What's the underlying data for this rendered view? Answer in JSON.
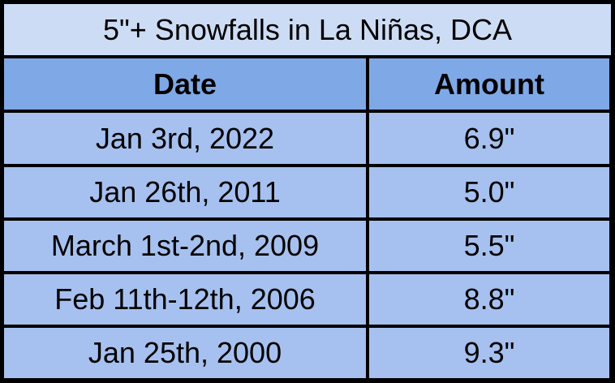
{
  "table": {
    "title": "5\"+ Snowfalls in La Niñas, DCA",
    "headers": {
      "date": "Date",
      "amount": "Amount"
    },
    "rows": [
      {
        "date": "Jan 3rd, 2022",
        "amount": "6.9\""
      },
      {
        "date": "Jan 26th, 2011",
        "amount": "5.0\""
      },
      {
        "date": "March 1st-2nd, 2009",
        "amount": "5.5\""
      },
      {
        "date": "Feb 11th-12th, 2006",
        "amount": "8.8\""
      },
      {
        "date": "Jan 25th, 2000",
        "amount": "9.3\""
      }
    ]
  },
  "colors": {
    "title_fill": "#cddcf5",
    "header_fill": "#7fa8e6",
    "row_fill": "#a6c1ef",
    "border": "#000000"
  }
}
